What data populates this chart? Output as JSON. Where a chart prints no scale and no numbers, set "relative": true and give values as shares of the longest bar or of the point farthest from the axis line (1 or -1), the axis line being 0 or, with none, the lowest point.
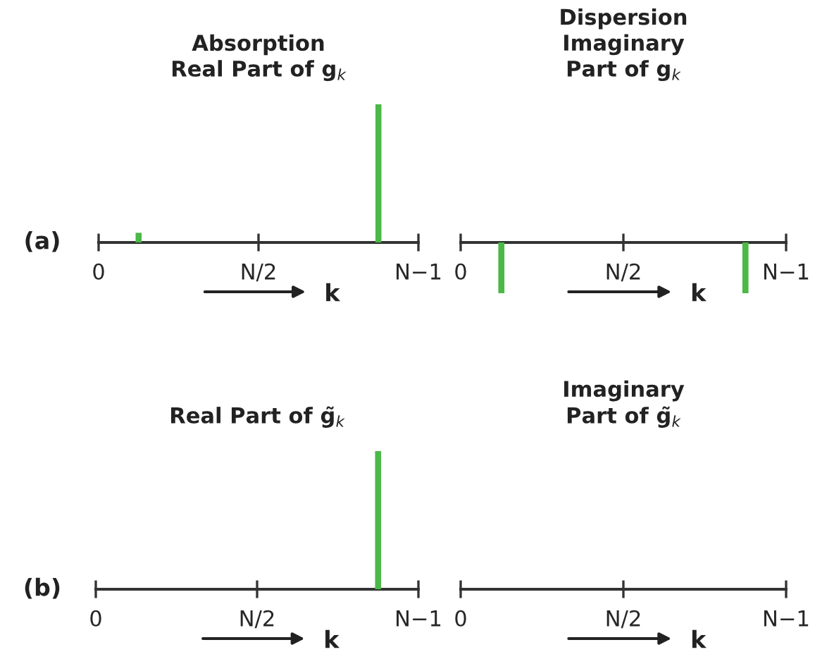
{
  "chart_data": [
    {
      "type": "bar",
      "title": "Absorption\nReal Part of g$_{k}$",
      "xlabel": "k",
      "relative": true,
      "categories": [
        "0",
        null,
        null,
        null,
        null,
        null,
        null,
        null,
        "N/2",
        null,
        null,
        null,
        null,
        null,
        null,
        null,
        "N−1"
      ],
      "values": [
        null,
        null,
        0.07,
        null,
        null,
        null,
        null,
        null,
        null,
        null,
        null,
        null,
        null,
        null,
        1,
        null,
        null
      ],
      "color": "#4cb848",
      "annotations": [
        "(a)"
      ]
    },
    {
      "type": "bar",
      "title": "Dispersion\nImaginary\nPart of g$_{k}$",
      "xlabel": "k",
      "relative": true,
      "categories": [
        "0",
        null,
        null,
        null,
        null,
        null,
        null,
        null,
        "N/2",
        null,
        null,
        null,
        null,
        null,
        null,
        null,
        "N−1"
      ],
      "values": [
        null,
        null,
        -1,
        null,
        null,
        null,
        null,
        null,
        null,
        null,
        null,
        null,
        null,
        null,
        -1,
        null,
        null
      ],
      "color": "#4cb848"
    },
    {
      "type": "bar",
      "title": "Real Part of g̃$_{k}$",
      "xlabel": "k",
      "relative": true,
      "categories": [
        "0",
        null,
        null,
        null,
        null,
        null,
        null,
        null,
        "N/2",
        null,
        null,
        null,
        null,
        null,
        null,
        null,
        "N−1"
      ],
      "values": [
        null,
        null,
        null,
        null,
        null,
        null,
        null,
        null,
        null,
        null,
        null,
        null,
        null,
        null,
        1,
        null,
        null
      ],
      "color": "#4cb848",
      "annotations": [
        "(b)"
      ]
    },
    {
      "type": "other",
      "title": "Imaginary\nPart of g̃$_{k}$",
      "xlabel": "k",
      "categories": [
        "0",
        null,
        null,
        null,
        null,
        null,
        null,
        null,
        "N/2",
        null,
        null,
        null,
        null,
        null,
        null,
        null,
        "N−1"
      ]
    }
  ]
}
